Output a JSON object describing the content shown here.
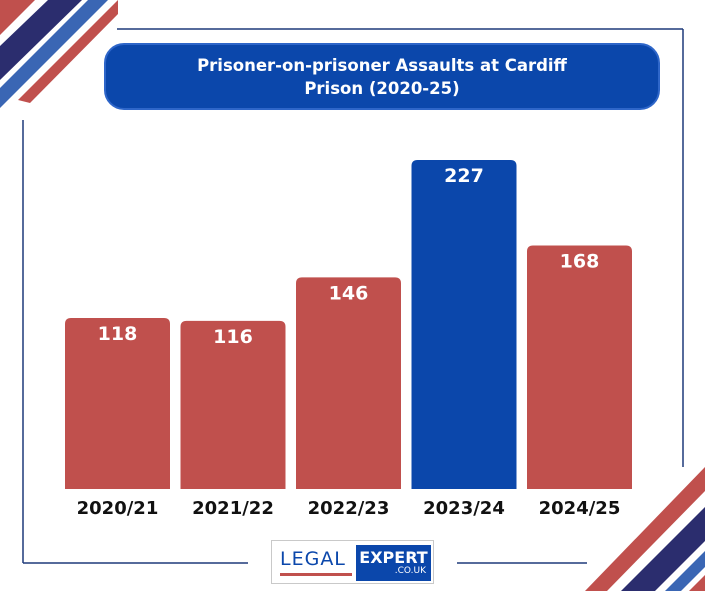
{
  "title": "Prisoner-on-prisoner Assaults at Cardiff Prison (2020-25)",
  "colors": {
    "bar_default": "#c0504d",
    "bar_highlight": "#0b47ab",
    "title_bg": "#0b47ab",
    "frame_line": "#1f3a7a",
    "stripe_red": "#c0504d",
    "stripe_navy": "#2b2d6e",
    "stripe_blue": "#3a66b4"
  },
  "chart_data": {
    "type": "bar",
    "title": "Prisoner-on-prisoner Assaults at Cardiff Prison (2020-25)",
    "categories": [
      "2020/21",
      "2021/22",
      "2022/23",
      "2023/24",
      "2024/25"
    ],
    "values": [
      118,
      116,
      146,
      227,
      168
    ],
    "highlight_index": 3,
    "data_labels": true,
    "xlabel": "",
    "ylabel": "",
    "ylim": [
      0,
      227
    ],
    "grid": false,
    "legend": "none"
  },
  "logo": {
    "legal": "LEGAL",
    "expert": "EXPERT",
    "domain": ".CO.UK"
  }
}
